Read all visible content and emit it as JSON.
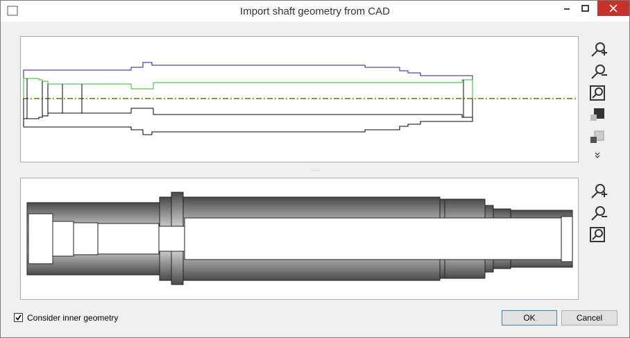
{
  "window": {
    "title": "Import shaft geometry from CAD"
  },
  "options": {
    "consider_inner": {
      "label": "Consider inner geometry",
      "checked": true
    }
  },
  "buttons": {
    "ok": "OK",
    "cancel": "Cancel"
  }
}
